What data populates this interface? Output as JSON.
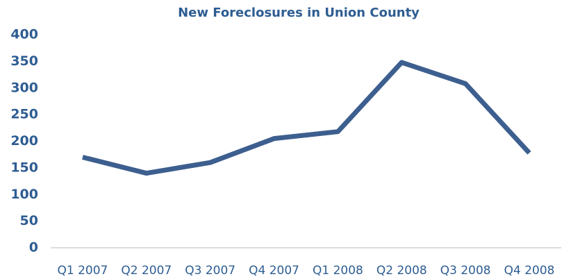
{
  "chart_data": {
    "type": "line",
    "title": "New Foreclosures in Union County",
    "categories": [
      "Q1 2007",
      "Q2 2007",
      "Q3 2007",
      "Q4 2007",
      "Q1 2008",
      "Q2 2008",
      "Q3 2008",
      "Q4 2008"
    ],
    "series": [
      {
        "name": "New Foreclosures",
        "color": "#3d5f8f",
        "values": [
          170,
          140,
          160,
          205,
          218,
          348,
          308,
          178
        ]
      }
    ],
    "ylim": [
      0,
      400
    ],
    "yticks": [
      0,
      50,
      100,
      150,
      200,
      250,
      300,
      350,
      400
    ],
    "grid": false
  }
}
